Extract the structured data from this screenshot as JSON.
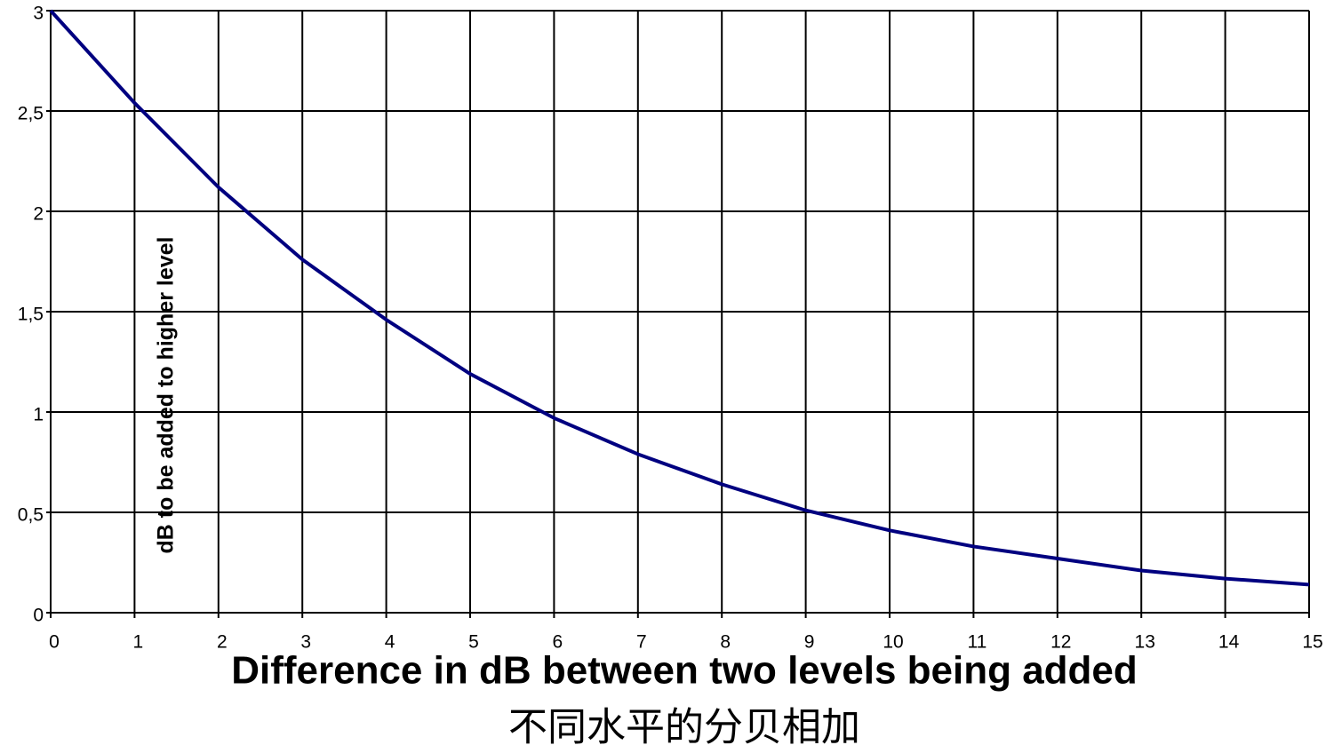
{
  "chart_data": {
    "type": "line",
    "y_label": "dB to be added to higher level",
    "x_label": "Difference in dB between two  levels being added",
    "subtitle": "不同水平的分贝相加",
    "x": [
      0,
      1,
      2,
      3,
      4,
      5,
      6,
      7,
      8,
      9,
      10,
      11,
      12,
      13,
      14,
      15
    ],
    "series": [
      {
        "color": "#000080",
        "values": [
          3,
          2.54,
          2.12,
          1.76,
          1.46,
          1.19,
          0.97,
          0.79,
          0.64,
          0.51,
          0.41,
          0.33,
          0.27,
          0.21,
          0.17,
          0.14
        ]
      }
    ],
    "xlim": [
      0,
      15
    ],
    "xticks": [
      0,
      1,
      2,
      3,
      4,
      5,
      6,
      7,
      8,
      9,
      10,
      11,
      12,
      13,
      14,
      15
    ],
    "ylim": [
      0,
      3
    ],
    "yticks": [
      0,
      {
        "value": 0.5,
        "label": "0,5"
      },
      1,
      {
        "value": 1.5,
        "label": "1,5"
      },
      2,
      {
        "value": 2.5,
        "label": "2,5"
      },
      3
    ],
    "grid": true
  }
}
